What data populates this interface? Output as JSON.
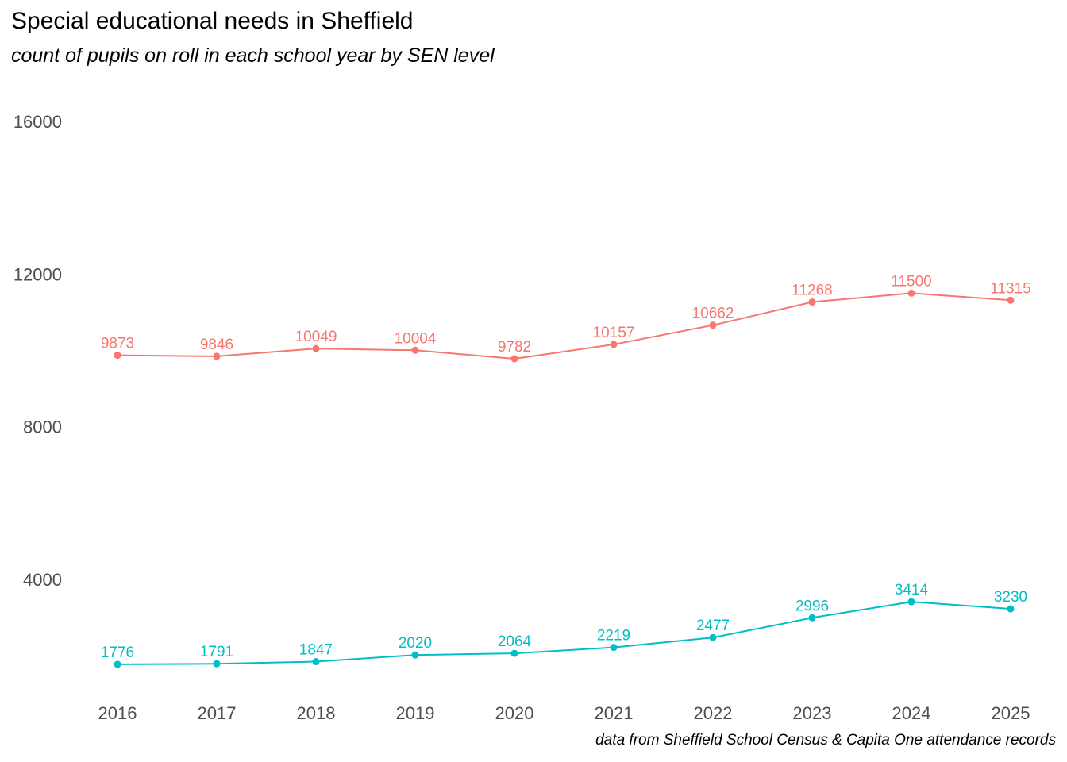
{
  "title": "Special educational needs in Sheffield",
  "subtitle": "count of pupils on roll in each school year by SEN level",
  "caption": "data from Sheffield School Census & Capita One attendance records",
  "chart_data": {
    "type": "line",
    "title": "Special educational needs in Sheffield",
    "subtitle": "count of pupils on roll in each school year by SEN level",
    "xlabel": "",
    "ylabel": "",
    "x": [
      "2016",
      "2017",
      "2018",
      "2019",
      "2020",
      "2021",
      "2022",
      "2023",
      "2024",
      "2025"
    ],
    "y_ticks": [
      4000,
      8000,
      12000,
      16000
    ],
    "ylim": [
      1000,
      16600
    ],
    "grid": false,
    "legend": "none",
    "series": [
      {
        "color": "#F8766D",
        "values": [
          9873,
          9846,
          10049,
          10004,
          9782,
          10157,
          10662,
          11268,
          11500,
          11315
        ]
      },
      {
        "color": "#00BFC4",
        "values": [
          1776,
          1791,
          1847,
          2020,
          2064,
          2219,
          2477,
          2996,
          3414,
          3230
        ]
      }
    ]
  }
}
